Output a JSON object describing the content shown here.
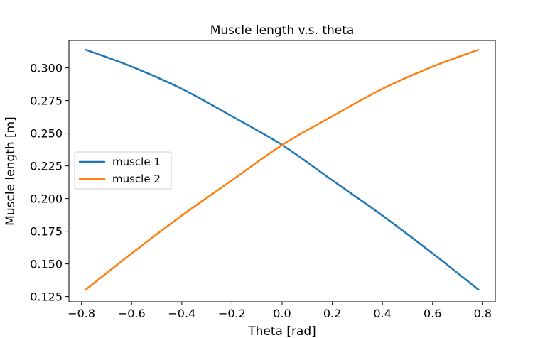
{
  "chart_data": {
    "type": "line",
    "title": "Muscle length v.s. theta",
    "xlabel": "Theta [rad]",
    "ylabel": "Muscle length [m]",
    "xlim": [
      -0.85,
      0.85
    ],
    "ylim": [
      0.121,
      0.321
    ],
    "xticks": [
      -0.8,
      -0.6,
      -0.4,
      -0.2,
      0.0,
      0.2,
      0.4,
      0.6,
      0.8
    ],
    "xtick_labels": [
      "−0.8",
      "−0.6",
      "−0.4",
      "−0.2",
      "0.0",
      "0.2",
      "0.4",
      "0.6",
      "0.8"
    ],
    "yticks": [
      0.125,
      0.15,
      0.175,
      0.2,
      0.225,
      0.25,
      0.275,
      0.3
    ],
    "ytick_labels": [
      "0.125",
      "0.150",
      "0.175",
      "0.200",
      "0.225",
      "0.250",
      "0.275",
      "0.300"
    ],
    "grid": false,
    "legend_position": "center-left",
    "x": [
      -0.785,
      -0.6,
      -0.4,
      -0.2,
      0.0,
      0.2,
      0.4,
      0.6,
      0.785
    ],
    "series": [
      {
        "name": "muscle 1",
        "color": "#1f77b4",
        "values": [
          0.314,
          0.301,
          0.284,
          0.263,
          0.241,
          0.214,
          0.187,
          0.158,
          0.13
        ]
      },
      {
        "name": "muscle 2",
        "color": "#ff7f0e",
        "values": [
          0.13,
          0.158,
          0.187,
          0.214,
          0.241,
          0.263,
          0.284,
          0.301,
          0.314
        ]
      }
    ]
  }
}
